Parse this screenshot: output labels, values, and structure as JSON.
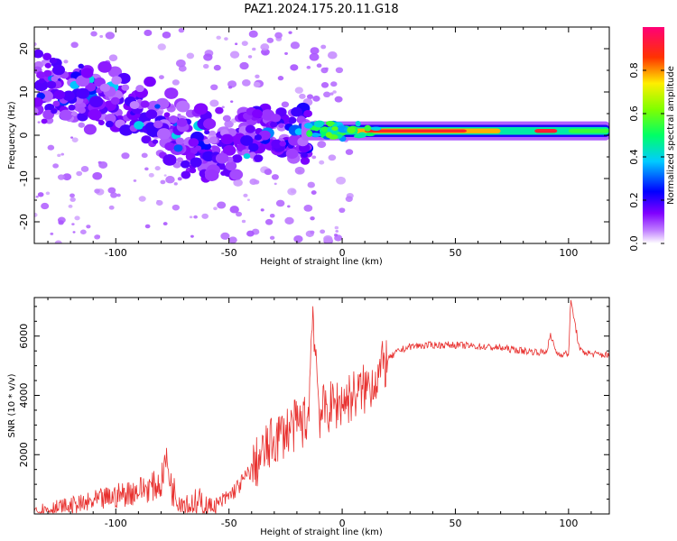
{
  "figure_title": "PAZ1.2024.175.20.11.G18",
  "chart_data": [
    {
      "type": "heatmap",
      "title": "",
      "xlabel": "Height of straight line (km)",
      "ylabel": "Frequency (Hz)",
      "xlim": [
        -136,
        118
      ],
      "ylim": [
        -25,
        25
      ],
      "xticks": [
        -100,
        -50,
        0,
        50,
        100
      ],
      "yticks": [
        -20,
        -10,
        0,
        10,
        20
      ],
      "colorbar": {
        "label": "Normalized spectral amplitude",
        "range": [
          0,
          1
        ],
        "ticks": [
          0.0,
          0.2,
          0.4,
          0.6,
          0.8
        ],
        "colormap": [
          "#ffffff",
          "#8000ff",
          "#0000ff",
          "#00ffff",
          "#00ff00",
          "#ffff00",
          "#ff0000",
          "#ff0080"
        ]
      },
      "ridge": {
        "description_x_segments": [
          {
            "x": [
              -136,
              -80
            ],
            "freq": [
              12,
              4
            ]
          },
          {
            "x": [
              -80,
              -15
            ],
            "freq": [
              3,
              0
            ]
          },
          {
            "x": [
              -15,
              118
            ],
            "freq": [
              1,
              1
            ]
          }
        ]
      },
      "grid": false
    },
    {
      "type": "line",
      "title": "",
      "xlabel": "Height of straight line (km)",
      "ylabel": "SNR (10 * v/v)",
      "xlim": [
        -136,
        118
      ],
      "ylim": [
        0,
        7300
      ],
      "xticks": [
        -100,
        -50,
        0,
        50,
        100
      ],
      "yticks": [
        2000,
        4000,
        6000
      ],
      "series": [
        {
          "color": "#e8312f",
          "x": [
            -136,
            -130,
            -125,
            -120,
            -115,
            -110,
            -105,
            -100,
            -95,
            -90,
            -85,
            -80,
            -78,
            -75,
            -70,
            -65,
            -60,
            -55,
            -50,
            -45,
            -40,
            -35,
            -30,
            -25,
            -20,
            -15,
            -13,
            -10,
            -5,
            0,
            5,
            10,
            15,
            20,
            25,
            30,
            40,
            50,
            60,
            70,
            80,
            90,
            92,
            95,
            100,
            101,
            105,
            110,
            118
          ],
          "y": [
            100,
            150,
            200,
            250,
            300,
            400,
            500,
            600,
            700,
            800,
            900,
            1000,
            1900,
            800,
            400,
            300,
            250,
            300,
            600,
            1000,
            1500,
            2000,
            2500,
            2800,
            3000,
            3200,
            7000,
            3400,
            3600,
            3800,
            4000,
            4200,
            4600,
            5200,
            5500,
            5650,
            5700,
            5700,
            5650,
            5600,
            5500,
            5450,
            6000,
            5400,
            5400,
            7200,
            5500,
            5400,
            5350
          ]
        }
      ],
      "grid": false
    }
  ]
}
